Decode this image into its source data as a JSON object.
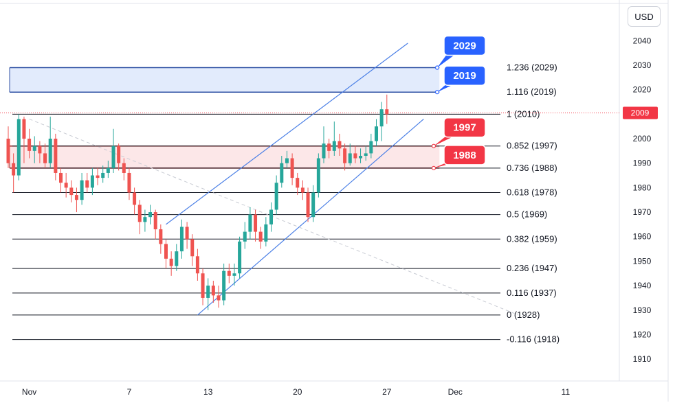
{
  "currency_button": "USD",
  "colors": {
    "up": "#26a69a",
    "down": "#ef5350",
    "trend": "#4a7fe6",
    "blue_zone_fill": "#dde8fb",
    "blue_zone_border": "#2d4fa3",
    "red_zone_fill": "#fbe3e4",
    "red_zone_border": "#8b1a1a",
    "blue_label": "#2962ff",
    "red_label": "#f23645",
    "fib_line": "#131722",
    "price_tag": "#f23645"
  },
  "chart_data": {
    "type": "candlestick",
    "y_range": [
      1905,
      2044
    ],
    "y_ticks": [
      "1910",
      "1920",
      "1930",
      "1940",
      "1950",
      "1960",
      "1970",
      "1980",
      "1990",
      "2000",
      "2010",
      "2020",
      "2030",
      "2040"
    ],
    "x_ticks": [
      {
        "label": "Nov",
        "bar": 4
      },
      {
        "label": "7",
        "bar": 23
      },
      {
        "label": "13",
        "bar": 38
      },
      {
        "label": "20",
        "bar": 55
      },
      {
        "label": "27",
        "bar": 72
      },
      {
        "label": "Dec",
        "bar": 85
      },
      {
        "label": "11",
        "bar": 106
      }
    ],
    "current_price": "2009",
    "fib_levels": [
      {
        "label": "1.236 (2029)",
        "value": 2029,
        "line": false
      },
      {
        "label": "1.116 (2019)",
        "value": 2019,
        "line": false
      },
      {
        "label": "1 (2010)",
        "value": 2010,
        "line": true
      },
      {
        "label": "0.852 (1997)",
        "value": 1997,
        "line": true
      },
      {
        "label": "0.736 (1988)",
        "value": 1988,
        "line": true
      },
      {
        "label": "0.618 (1978)",
        "value": 1978,
        "line": true
      },
      {
        "label": "0.5 (1969)",
        "value": 1969,
        "line": true
      },
      {
        "label": "0.382 (1959)",
        "value": 1959,
        "line": true
      },
      {
        "label": "0.236 (1947)",
        "value": 1947,
        "line": true
      },
      {
        "label": "0.116 (1937)",
        "value": 1937,
        "line": true
      },
      {
        "label": "0 (1928)",
        "value": 1928,
        "line": true
      },
      {
        "label": "-0.116 (1918)",
        "value": 1918,
        "line": true
      }
    ],
    "zones": [
      {
        "name": "blue",
        "top": 2029,
        "bottom": 2019,
        "end_bar": 82
      },
      {
        "name": "red",
        "top": 1997,
        "bottom": 1988,
        "end_bar": 82
      }
    ],
    "callouts": [
      {
        "text": "2029",
        "value": 2029,
        "color": "blue"
      },
      {
        "text": "2019",
        "value": 2019,
        "color": "blue"
      },
      {
        "text": "1997",
        "value": 1997,
        "color": "red"
      },
      {
        "text": "1988",
        "value": 1988,
        "color": "red"
      }
    ],
    "channel": {
      "upper": [
        [
          30,
          1965
        ],
        [
          76,
          2039
        ]
      ],
      "lower": [
        [
          36,
          1928
        ],
        [
          79,
          2008
        ]
      ]
    },
    "dashed_trend": [
      [
        4,
        2008
      ],
      [
        97,
        1928
      ]
    ],
    "candles": [
      [
        2000,
        1990,
        2005,
        1988
      ],
      [
        1990,
        1985,
        1994,
        1978
      ],
      [
        1985,
        2008,
        2010,
        1983
      ],
      [
        2008,
        2000,
        2009,
        1990
      ],
      [
        2000,
        1995,
        2004,
        1992
      ],
      [
        1995,
        1997,
        2001,
        1990
      ],
      [
        1997,
        1994,
        1999,
        1990
      ],
      [
        1994,
        1990,
        1998,
        1988
      ],
      [
        1990,
        2000,
        2009,
        1988
      ],
      [
        2000,
        1986,
        2002,
        1983
      ],
      [
        1986,
        1982,
        1988,
        1978
      ],
      [
        1982,
        1980,
        1986,
        1976
      ],
      [
        1980,
        1977,
        1983,
        1974
      ],
      [
        1977,
        1975,
        1980,
        1970
      ],
      [
        1975,
        1983,
        1986,
        1973
      ],
      [
        1983,
        1980,
        1986,
        1978
      ],
      [
        1980,
        1985,
        1988,
        1977
      ],
      [
        1985,
        1984,
        1988,
        1981
      ],
      [
        1984,
        1986,
        1989,
        1982
      ],
      [
        1986,
        1988,
        1991,
        1984
      ],
      [
        1988,
        1997,
        2004,
        1986
      ],
      [
        1997,
        1990,
        1998,
        1987
      ],
      [
        1990,
        1986,
        1992,
        1983
      ],
      [
        1986,
        1978,
        1988,
        1975
      ],
      [
        1978,
        1973,
        1980,
        1969
      ],
      [
        1973,
        1966,
        1975,
        1961
      ],
      [
        1966,
        1968,
        1971,
        1962
      ],
      [
        1968,
        1970,
        1973,
        1965
      ],
      [
        1970,
        1963,
        1971,
        1959
      ],
      [
        1963,
        1957,
        1965,
        1953
      ],
      [
        1957,
        1951,
        1959,
        1947
      ],
      [
        1951,
        1948,
        1954,
        1944
      ],
      [
        1948,
        1954,
        1957,
        1946
      ],
      [
        1954,
        1964,
        1967,
        1951
      ],
      [
        1964,
        1959,
        1966,
        1955
      ],
      [
        1959,
        1952,
        1961,
        1948
      ],
      [
        1952,
        1945,
        1955,
        1942
      ],
      [
        1945,
        1935,
        1947,
        1932
      ],
      [
        1935,
        1940,
        1943,
        1930
      ],
      [
        1940,
        1936,
        1942,
        1933
      ],
      [
        1936,
        1934,
        1940,
        1931
      ],
      [
        1934,
        1946,
        1949,
        1932
      ],
      [
        1946,
        1944,
        1949,
        1941
      ],
      [
        1944,
        1945,
        1949,
        1940
      ],
      [
        1945,
        1958,
        1960,
        1943
      ],
      [
        1958,
        1962,
        1966,
        1955
      ],
      [
        1962,
        1969,
        1972,
        1959
      ],
      [
        1969,
        1962,
        1971,
        1958
      ],
      [
        1962,
        1958,
        1964,
        1955
      ],
      [
        1958,
        1965,
        1968,
        1956
      ],
      [
        1965,
        1971,
        1974,
        1962
      ],
      [
        1971,
        1982,
        1985,
        1969
      ],
      [
        1982,
        1990,
        1993,
        1980
      ],
      [
        1990,
        1992,
        1995,
        1988
      ],
      [
        1992,
        1984,
        1994,
        1981
      ],
      [
        1984,
        1980,
        1986,
        1977
      ],
      [
        1980,
        1978,
        1983,
        1975
      ],
      [
        1978,
        1968,
        1980,
        1966
      ],
      [
        1968,
        1978,
        1981,
        1966
      ],
      [
        1978,
        1992,
        1994,
        1976
      ],
      [
        1992,
        1998,
        2005,
        1990
      ],
      [
        1998,
        1995,
        2000,
        1992
      ],
      [
        1995,
        1999,
        2007,
        1993
      ],
      [
        1999,
        1996,
        2002,
        1993
      ],
      [
        1996,
        1990,
        1998,
        1987
      ],
      [
        1990,
        1994,
        1998,
        1989
      ],
      [
        1994,
        1992,
        1997,
        1990
      ],
      [
        1992,
        1993,
        1996,
        1990
      ],
      [
        1993,
        1994,
        1997,
        1991
      ],
      [
        1994,
        1999,
        2002,
        1992
      ],
      [
        1999,
        2005,
        2008,
        1997
      ],
      [
        2005,
        2012,
        2015,
        1999
      ],
      [
        2012,
        2010,
        2018,
        2006
      ]
    ]
  }
}
